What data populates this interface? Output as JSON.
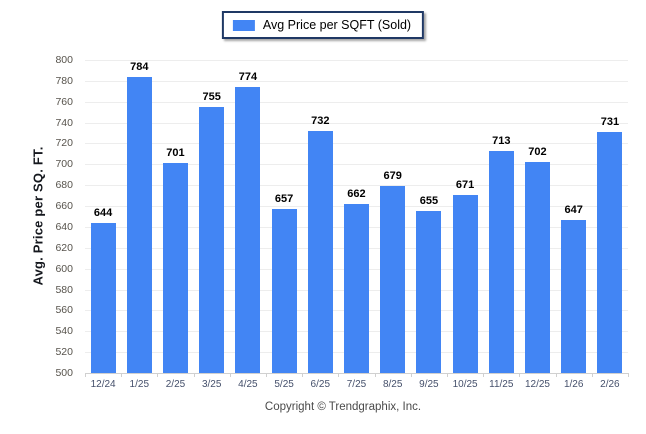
{
  "chart_data": {
    "type": "bar",
    "categories": [
      "12/24",
      "1/25",
      "2/25",
      "3/25",
      "4/25",
      "5/25",
      "6/25",
      "7/25",
      "8/25",
      "9/25",
      "10/25",
      "11/25",
      "12/25",
      "1/26",
      "2/26"
    ],
    "series": [
      {
        "name": "Avg Price per SQFT (Sold)",
        "values": [
          644,
          784,
          701,
          755,
          774,
          657,
          732,
          662,
          679,
          655,
          671,
          713,
          702,
          647,
          731
        ]
      }
    ],
    "xlabel": "",
    "ylabel": "Avg. Price per SQ. FT.",
    "ylim": [
      500,
      800
    ],
    "ytick_step": 20,
    "grid": "horizontal",
    "legend_position": "top-center",
    "value_labels": true
  },
  "footer": {
    "copyright": "Copyright © Trendgraphix, Inc."
  },
  "colors": {
    "bar": "#4285f4",
    "legend_border": "#1f3864",
    "grid_line": "#ededed",
    "axis_line": "#d0d0d0",
    "y_tick_label": "#57534c",
    "x_tick_label": "#45506b",
    "value_label": "#000000",
    "axis_title": "#15181e",
    "footer_text": "#4a4a4a"
  }
}
